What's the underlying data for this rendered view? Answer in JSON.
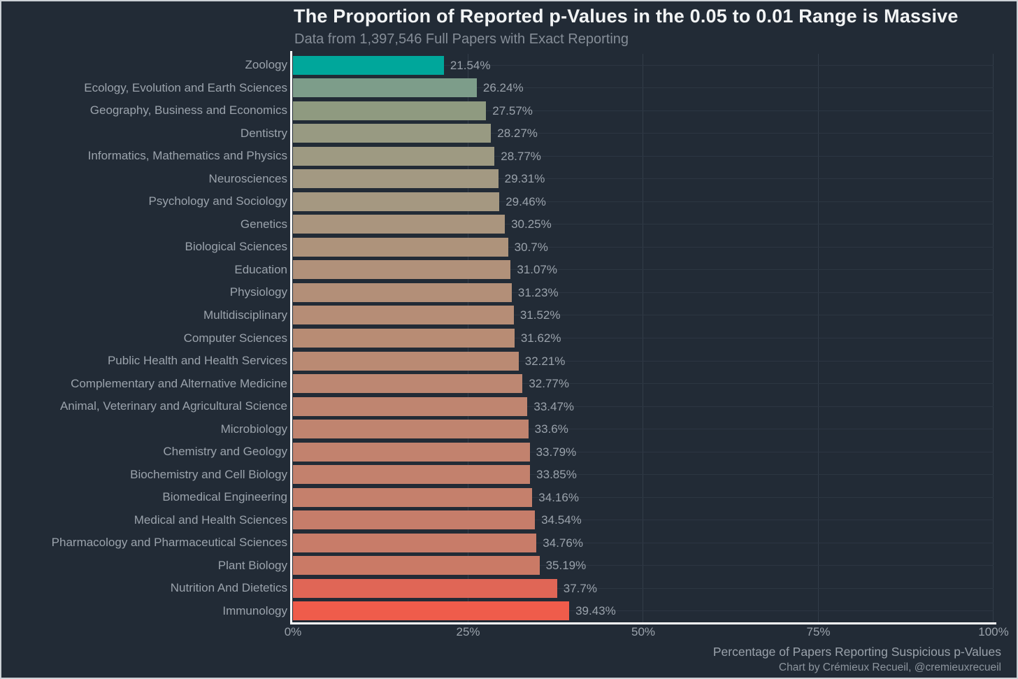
{
  "title": "The Proportion of Reported p-Values in the 0.05 to 0.01 Range is Massive",
  "subtitle": "Data from 1,397,546 Full Papers with Exact Reporting",
  "xlabel": "Percentage of Papers Reporting Suspicious p-Values",
  "caption": "Chart by Crémieux Recueil, @cremieuxrecueil",
  "colors": {
    "background": "#222b36",
    "axis_line": "#ffffff",
    "title_text": "#f2f4f5",
    "muted_text": "#9aa2ab",
    "grid_horizontal": "#2c3642",
    "grid_vertical": "#333d49"
  },
  "x_axis": {
    "tick_labels": [
      "0%",
      "25%",
      "50%",
      "75%",
      "100%"
    ],
    "tick_values": [
      0,
      25,
      50,
      75,
      100
    ]
  },
  "chart_data": {
    "type": "bar",
    "orientation": "horizontal",
    "title": "The Proportion of Reported p-Values in the 0.05 to 0.01 Range is Massive",
    "subtitle": "Data from 1,397,546 Full Papers with Exact Reporting",
    "xlabel": "Percentage of Papers Reporting Suspicious p-Values",
    "ylabel": "",
    "xlim": [
      0,
      100
    ],
    "grid": true,
    "legend": false,
    "sort": "ascending-top-to-bottom",
    "categories": [
      "Zoology",
      "Ecology, Evolution and Earth Sciences",
      "Geography, Business and Economics",
      "Dentistry",
      "Informatics, Mathematics and Physics",
      "Neurosciences",
      "Psychology and Sociology",
      "Genetics",
      "Biological Sciences",
      "Education",
      "Physiology",
      "Multidisciplinary",
      "Computer Sciences",
      "Public Health and Health Services",
      "Complementary and Alternative Medicine",
      "Animal, Veterinary and Agricultural Science",
      "Microbiology",
      "Chemistry and Geology",
      "Biochemistry and Cell Biology",
      "Biomedical Engineering",
      "Medical and Health Sciences",
      "Pharmacology and Pharmaceutical Sciences",
      "Plant Biology",
      "Nutrition And Dietetics",
      "Immunology"
    ],
    "values": [
      21.54,
      26.24,
      27.57,
      28.27,
      28.77,
      29.31,
      29.46,
      30.25,
      30.7,
      31.07,
      31.23,
      31.52,
      31.62,
      32.21,
      32.77,
      33.47,
      33.6,
      33.79,
      33.85,
      34.16,
      34.54,
      34.76,
      35.19,
      37.7,
      39.43
    ],
    "value_labels": [
      "21.54%",
      "26.24%",
      "27.57%",
      "28.27%",
      "28.77%",
      "29.31%",
      "29.46%",
      "30.25%",
      "30.7%",
      "31.07%",
      "31.23%",
      "31.52%",
      "31.62%",
      "32.21%",
      "32.77%",
      "33.47%",
      "33.6%",
      "33.79%",
      "33.85%",
      "34.16%",
      "34.54%",
      "34.76%",
      "35.19%",
      "37.7%",
      "39.43%"
    ],
    "bar_colors": [
      "#00a79b",
      "#7d9d8a",
      "#8f9a80",
      "#989a82",
      "#9e9a82",
      "#a39982",
      "#a59881",
      "#aa957e",
      "#ae937b",
      "#b1917a",
      "#b38f78",
      "#b68d76",
      "#b88c74",
      "#ba8a73",
      "#bd8772",
      "#bf8570",
      "#c0846f",
      "#c2826e",
      "#c3816d",
      "#c5806c",
      "#c67d6a",
      "#c87c69",
      "#ca7a66",
      "#e06656",
      "#ef5c4b"
    ]
  }
}
